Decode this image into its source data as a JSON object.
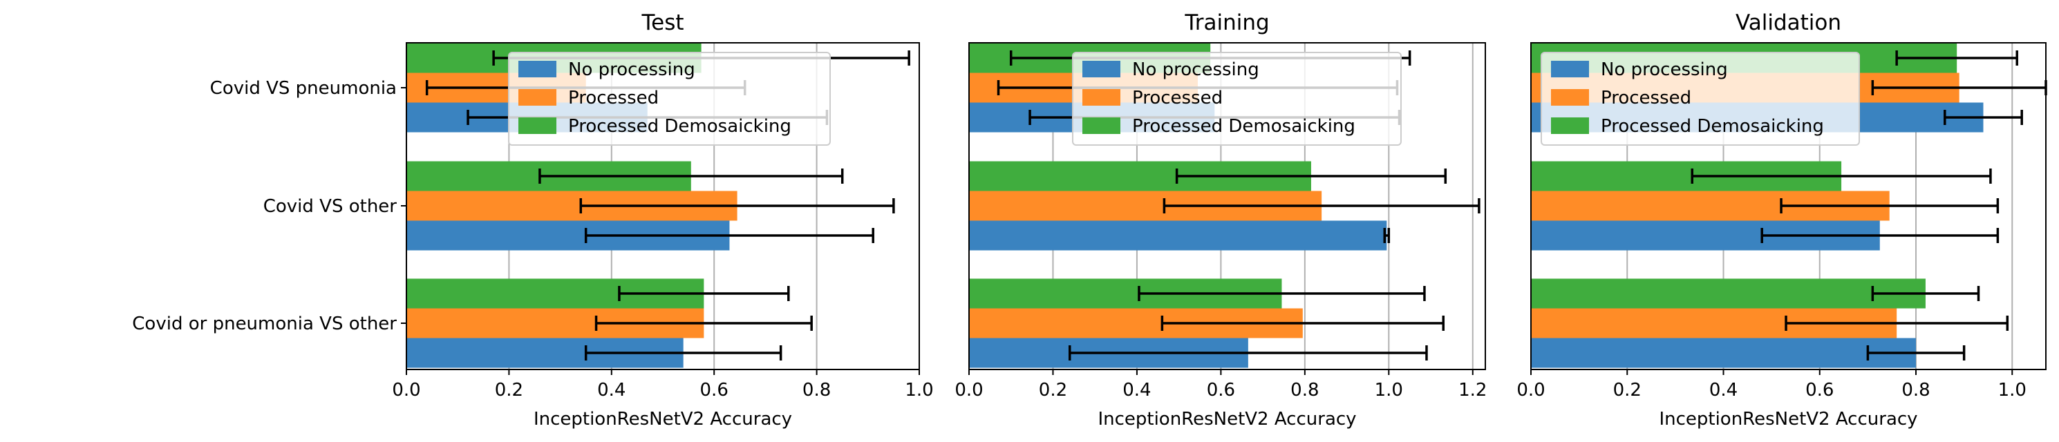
{
  "figure": {
    "category_labels": [
      "Covid VS pneumonia",
      "Covid VS other",
      "Covid or pneumonia VS other"
    ],
    "legend_entries": [
      "No processing",
      "Processed",
      "Processed Demosaicking"
    ],
    "colors": {
      "No processing": "#3a83c0",
      "Processed": "#ff8c27",
      "Processed Demosaicking": "#40ad3e",
      "error_bars": "#000000",
      "grid": "#b0b0b0"
    }
  },
  "chart_data": [
    {
      "type": "bar",
      "orientation": "horizontal",
      "title": "Test",
      "xlabel": "InceptionResNetV2 Accuracy",
      "xlim": [
        0,
        1.0
      ],
      "xticks": [
        "0.0",
        "0.2",
        "0.4",
        "0.6",
        "0.8",
        "1.0"
      ],
      "grid": "vertical",
      "legend_position": "top-center",
      "categories": [
        "Covid or pneumonia VS other",
        "Covid VS other",
        "Covid VS pneumonia"
      ],
      "series": [
        {
          "name": "No processing",
          "values": [
            0.54,
            0.63,
            0.47
          ],
          "errors": [
            0.19,
            0.28,
            0.35
          ]
        },
        {
          "name": "Processed",
          "values": [
            0.58,
            0.645,
            0.35
          ],
          "errors": [
            0.21,
            0.305,
            0.31
          ]
        },
        {
          "name": "Processed Demosaicking",
          "values": [
            0.58,
            0.555,
            0.575
          ],
          "errors": [
            0.165,
            0.295,
            0.405
          ]
        }
      ]
    },
    {
      "type": "bar",
      "orientation": "horizontal",
      "title": "Training",
      "xlabel": "InceptionResNetV2 Accuracy",
      "xlim": [
        0,
        1.23
      ],
      "xticks": [
        "0.0",
        "0.2",
        "0.4",
        "0.6",
        "0.8",
        "1.0",
        "1.2"
      ],
      "grid": "vertical",
      "legend_position": "top-center",
      "categories": [
        "Covid or pneumonia VS other",
        "Covid VS other",
        "Covid VS pneumonia"
      ],
      "series": [
        {
          "name": "No processing",
          "values": [
            0.665,
            0.995,
            0.585
          ],
          "errors": [
            0.425,
            0.005,
            0.44
          ]
        },
        {
          "name": "Processed",
          "values": [
            0.795,
            0.84,
            0.545
          ],
          "errors": [
            0.335,
            0.375,
            0.475
          ]
        },
        {
          "name": "Processed Demosaicking",
          "values": [
            0.745,
            0.815,
            0.575
          ],
          "errors": [
            0.34,
            0.32,
            0.475
          ]
        }
      ]
    },
    {
      "type": "bar",
      "orientation": "horizontal",
      "title": "Validation",
      "xlabel": "InceptionResNetV2 Accuracy",
      "xlim": [
        0,
        1.07
      ],
      "xticks": [
        "0.0",
        "0.2",
        "0.4",
        "0.6",
        "0.8",
        "1.0"
      ],
      "grid": "vertical",
      "legend_position": "top-left",
      "categories": [
        "Covid or pneumonia VS other",
        "Covid VS other",
        "Covid VS pneumonia"
      ],
      "series": [
        {
          "name": "No processing",
          "values": [
            0.8,
            0.725,
            0.94
          ],
          "errors": [
            0.1,
            0.245,
            0.08
          ]
        },
        {
          "name": "Processed",
          "values": [
            0.76,
            0.745,
            0.89
          ],
          "errors": [
            0.23,
            0.225,
            0.18
          ]
        },
        {
          "name": "Processed Demosaicking",
          "values": [
            0.82,
            0.645,
            0.885
          ],
          "errors": [
            0.11,
            0.31,
            0.125
          ]
        }
      ]
    }
  ]
}
